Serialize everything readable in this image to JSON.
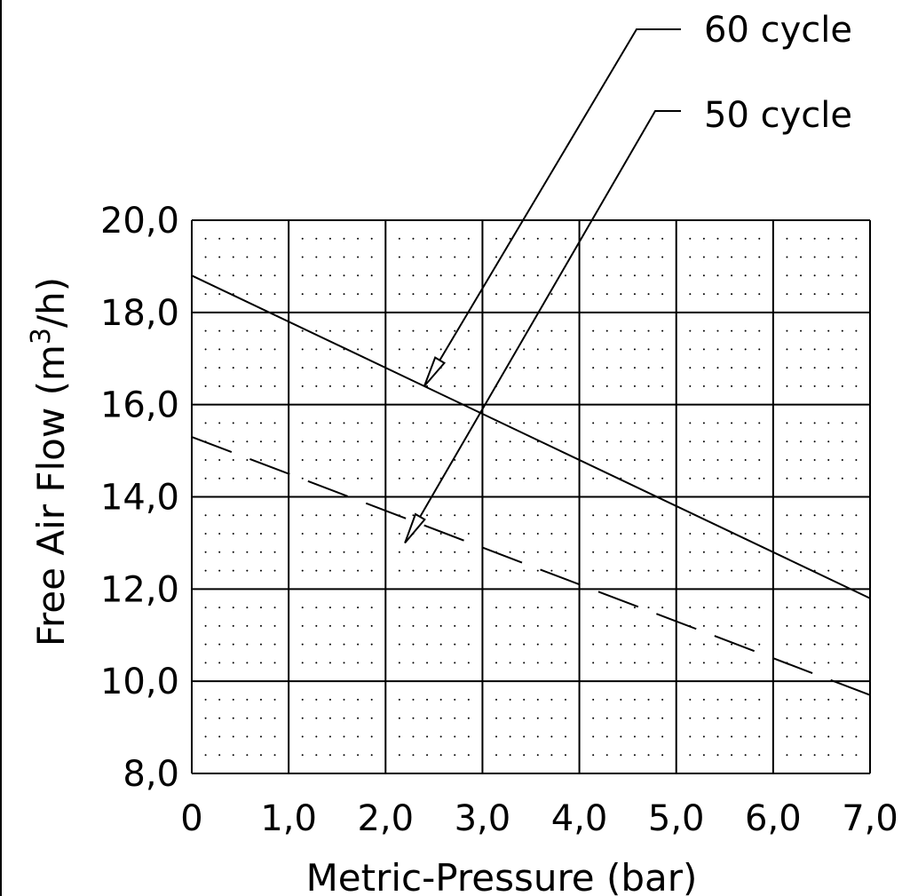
{
  "chart_data": {
    "type": "line",
    "xlabel": "Metric-Pressure (bar)",
    "ylabel_main": "Free Air Flow (m",
    "ylabel_sup": "3",
    "ylabel_tail": "/h)",
    "xlim": [
      0,
      7
    ],
    "ylim": [
      8,
      20
    ],
    "x_ticks": [
      0,
      1,
      2,
      3,
      4,
      5,
      6,
      7
    ],
    "x_tick_labels": [
      "0",
      "1,0",
      "2,0",
      "3,0",
      "4,0",
      "5,0",
      "6,0",
      "7,0"
    ],
    "y_ticks": [
      8,
      10,
      12,
      14,
      16,
      18,
      20
    ],
    "y_tick_labels": [
      "8,0",
      "10,0",
      "12,0",
      "14,0",
      "16,0",
      "18,0",
      "20,0"
    ],
    "grid": true,
    "series": [
      {
        "name": "60 cycle",
        "style": "solid",
        "x": [
          0,
          7
        ],
        "y": [
          18.8,
          11.8
        ]
      },
      {
        "name": "50 cycle",
        "style": "dashed",
        "x": [
          0,
          7
        ],
        "y": [
          15.3,
          9.7
        ]
      }
    ],
    "annotations": [
      {
        "text": "60 cycle",
        "target": [
          2.4,
          16.4
        ]
      },
      {
        "text": "50 cycle",
        "target": [
          2.2,
          13.0
        ]
      }
    ]
  }
}
